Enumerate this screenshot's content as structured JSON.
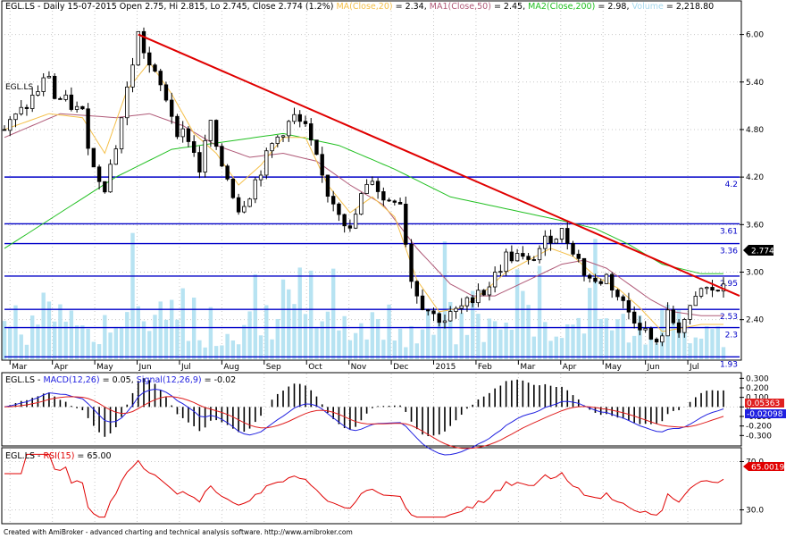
{
  "header": {
    "symbol": "EGL.LS",
    "period": "Daily",
    "date": "15-07-2015",
    "open_label": "Open",
    "open": "2.75",
    "hi_label": "Hi",
    "hi": "2.815",
    "lo_label": "Lo",
    "lo": "2.745",
    "close_label": "Close",
    "close": "2.774",
    "change": "(1.2%)",
    "ma20_label": "MA(Close,20)",
    "ma20": "2.34",
    "ma50_label": "MA1(Close,50)",
    "ma50": "2.45",
    "ma200_label": "MA2(Close,200)",
    "ma200": "2.98",
    "volume_label": "Volume",
    "volume": "2,218.80"
  },
  "colors": {
    "candle": "#000000",
    "ma20": "#f5c04a",
    "ma50": "#b05a78",
    "ma200": "#22c022",
    "volume": "#b7e3f2",
    "trendline": "#e00000",
    "hline": "#0000c8",
    "macd": "#2020e0",
    "signal": "#e02020",
    "rsi": "#e00000",
    "grid": "#c8c8c8"
  },
  "chart_data": [
    {
      "type": "candlestick",
      "panel": "price",
      "x_labels": [
        "Mar",
        "Apr",
        "May",
        "Jun",
        "Jul",
        "Aug",
        "Sep",
        "Oct",
        "Nov",
        "Dec",
        "2015",
        "Feb",
        "Mar",
        "Apr",
        "May",
        "Jun",
        "Jul"
      ],
      "ylim": [
        1.9,
        6.3
      ],
      "y_ticks": [
        6.0,
        5.4,
        4.8,
        4.2,
        3.6,
        3.0,
        2.4
      ],
      "y_tick_labels": [
        "6.00",
        "5.40",
        "4.80",
        "4.20",
        "3.60",
        "3.00",
        "2.40"
      ],
      "close_path": [
        [
          0,
          4.8
        ],
        [
          4,
          5.1
        ],
        [
          8,
          5.5
        ],
        [
          9,
          5.2
        ],
        [
          11,
          5.15
        ],
        [
          14,
          5.0
        ],
        [
          16,
          4.3
        ],
        [
          18,
          4.1
        ],
        [
          20,
          4.6
        ],
        [
          22,
          5.3
        ],
        [
          24,
          6.0
        ],
        [
          26,
          5.6
        ],
        [
          29,
          5.2
        ],
        [
          31,
          4.8
        ],
        [
          33,
          4.7
        ],
        [
          35,
          4.3
        ],
        [
          37,
          4.9
        ],
        [
          38,
          4.5
        ],
        [
          40,
          4.2
        ],
        [
          42,
          3.8
        ],
        [
          44,
          4.0
        ],
        [
          46,
          4.3
        ],
        [
          48,
          4.6
        ],
        [
          50,
          4.8
        ],
        [
          52,
          4.95
        ],
        [
          54,
          4.8
        ],
        [
          56,
          4.4
        ],
        [
          58,
          4.0
        ],
        [
          60,
          3.8
        ],
        [
          62,
          3.5
        ],
        [
          64,
          3.95
        ],
        [
          65,
          4.05
        ],
        [
          66,
          4.2
        ],
        [
          68,
          3.9
        ],
        [
          70,
          3.95
        ],
        [
          71,
          3.9
        ],
        [
          73,
          2.9
        ],
        [
          75,
          2.6
        ],
        [
          77,
          2.45
        ],
        [
          79,
          2.4
        ],
        [
          81,
          2.5
        ],
        [
          83,
          2.6
        ],
        [
          85,
          2.8
        ],
        [
          86,
          2.75
        ],
        [
          88,
          2.95
        ],
        [
          90,
          3.2
        ],
        [
          92,
          3.2
        ],
        [
          94,
          3.1
        ],
        [
          96,
          3.3
        ],
        [
          98,
          3.45
        ],
        [
          100,
          3.5
        ],
        [
          102,
          3.3
        ],
        [
          104,
          3.0
        ],
        [
          106,
          2.85
        ],
        [
          108,
          2.95
        ],
        [
          110,
          2.7
        ],
        [
          112,
          2.5
        ],
        [
          114,
          2.35
        ],
        [
          116,
          2.15
        ],
        [
          117,
          2.05
        ],
        [
          119,
          2.45
        ],
        [
          121,
          2.3
        ],
        [
          123,
          2.5
        ],
        [
          125,
          2.774
        ]
      ],
      "ma20": [
        [
          0,
          4.8
        ],
        [
          8,
          5.0
        ],
        [
          14,
          4.95
        ],
        [
          18,
          4.5
        ],
        [
          22,
          5.3
        ],
        [
          26,
          5.65
        ],
        [
          30,
          5.25
        ],
        [
          34,
          4.75
        ],
        [
          38,
          4.5
        ],
        [
          42,
          4.1
        ],
        [
          46,
          4.35
        ],
        [
          50,
          4.7
        ],
        [
          54,
          4.7
        ],
        [
          58,
          4.1
        ],
        [
          62,
          3.75
        ],
        [
          66,
          3.95
        ],
        [
          70,
          3.7
        ],
        [
          74,
          2.9
        ],
        [
          78,
          2.5
        ],
        [
          82,
          2.55
        ],
        [
          86,
          2.75
        ],
        [
          90,
          3.0
        ],
        [
          94,
          3.15
        ],
        [
          98,
          3.3
        ],
        [
          102,
          3.2
        ],
        [
          106,
          2.95
        ],
        [
          110,
          2.8
        ],
        [
          114,
          2.55
        ],
        [
          118,
          2.25
        ],
        [
          122,
          2.3
        ],
        [
          125,
          2.34
        ]
      ],
      "ma50": [
        [
          0,
          4.7
        ],
        [
          10,
          5.0
        ],
        [
          20,
          4.95
        ],
        [
          26,
          5.0
        ],
        [
          32,
          4.85
        ],
        [
          38,
          4.6
        ],
        [
          44,
          4.45
        ],
        [
          50,
          4.5
        ],
        [
          56,
          4.4
        ],
        [
          62,
          4.1
        ],
        [
          68,
          3.85
        ],
        [
          74,
          3.3
        ],
        [
          80,
          2.85
        ],
        [
          84,
          2.7
        ],
        [
          88,
          2.7
        ],
        [
          94,
          2.9
        ],
        [
          100,
          3.1
        ],
        [
          104,
          3.15
        ],
        [
          108,
          3.05
        ],
        [
          112,
          2.85
        ],
        [
          116,
          2.65
        ],
        [
          120,
          2.5
        ],
        [
          125,
          2.45
        ]
      ],
      "ma200": [
        [
          0,
          3.3
        ],
        [
          10,
          3.75
        ],
        [
          20,
          4.2
        ],
        [
          30,
          4.55
        ],
        [
          40,
          4.65
        ],
        [
          50,
          4.75
        ],
        [
          60,
          4.6
        ],
        [
          70,
          4.3
        ],
        [
          80,
          3.95
        ],
        [
          90,
          3.8
        ],
        [
          100,
          3.65
        ],
        [
          106,
          3.55
        ],
        [
          112,
          3.35
        ],
        [
          118,
          3.1
        ],
        [
          125,
          2.98
        ]
      ],
      "trendline": [
        [
          24,
          6.0
        ],
        [
          127,
          2.7
        ]
      ],
      "horizontal_levels": [
        {
          "value": 4.2,
          "label": "4.2"
        },
        {
          "value": 3.61,
          "label": "3.61"
        },
        {
          "value": 3.36,
          "label": "3.36"
        },
        {
          "value": 2.95,
          "label": "2.95"
        },
        {
          "value": 2.53,
          "label": "2.53"
        },
        {
          "value": 2.3,
          "label": "2.3"
        },
        {
          "value": 1.93,
          "label": "1.93"
        }
      ],
      "last_value_label": "2.774"
    },
    {
      "type": "line",
      "panel": "macd",
      "title_symbol": "EGL.LS",
      "macd_label": "MACD(12,26)",
      "macd_value": "0.05",
      "signal_label": "Signal(12,26,9)",
      "signal_value": "-0.02",
      "ylim": [
        -0.4,
        0.35
      ],
      "y_ticks": [
        0.3,
        0.2,
        0.1,
        0,
        -0.1,
        -0.2,
        -0.3
      ],
      "y_tick_labels": [
        "0.300",
        "0.200",
        "0.100",
        "0",
        "-0.100",
        "-0.200",
        "-0.300"
      ],
      "macd_last": "0.05363",
      "signal_last": "-0.02098"
    },
    {
      "type": "line",
      "panel": "rsi",
      "title_symbol": "EGL.LS",
      "rsi_label": "RSI(15)",
      "rsi_value": "65.00",
      "ylim": [
        20,
        80
      ],
      "y_ticks": [
        70,
        30
      ],
      "y_tick_labels": [
        "70.0",
        "30.0"
      ],
      "rsi_last": "65.0019"
    }
  ],
  "footer": {
    "text": "Created with AmiBroker - advanced charting and technical analysis software. http://www.amibroker.com"
  }
}
